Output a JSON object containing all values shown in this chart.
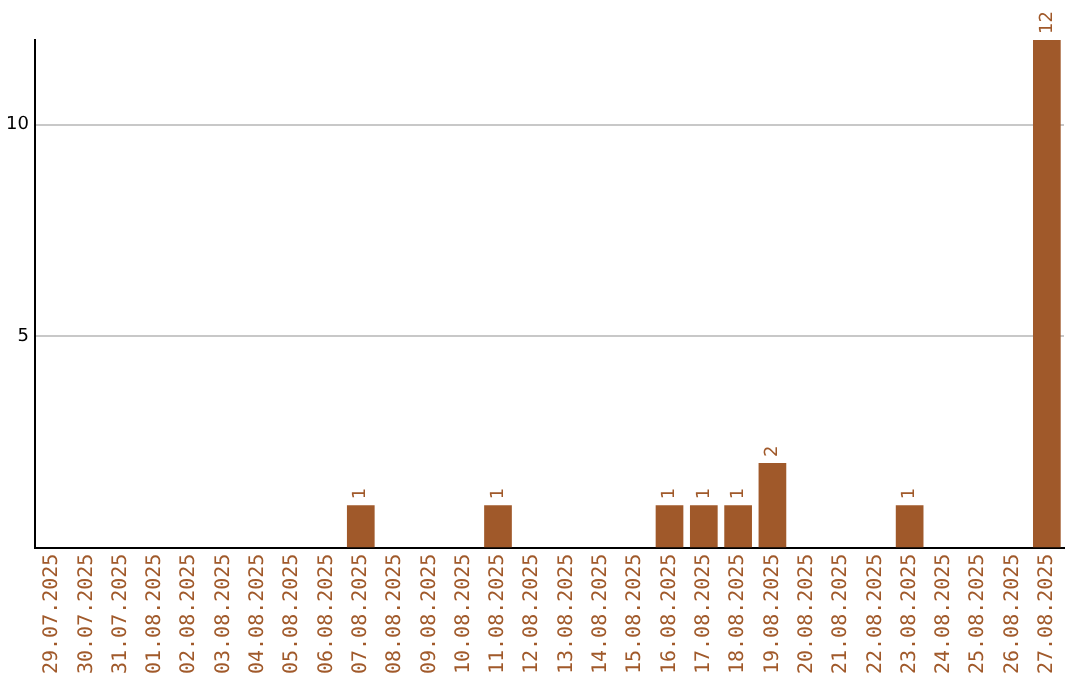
{
  "chart_data": {
    "type": "bar",
    "categories": [
      "29.07.2025",
      "30.07.2025",
      "31.07.2025",
      "01.08.2025",
      "02.08.2025",
      "03.08.2025",
      "04.08.2025",
      "05.08.2025",
      "06.08.2025",
      "07.08.2025",
      "08.08.2025",
      "09.08.2025",
      "10.08.2025",
      "11.08.2025",
      "12.08.2025",
      "13.08.2025",
      "14.08.2025",
      "15.08.2025",
      "16.08.2025",
      "17.08.2025",
      "18.08.2025",
      "19.08.2025",
      "20.08.2025",
      "21.08.2025",
      "22.08.2025",
      "23.08.2025",
      "24.08.2025",
      "25.08.2025",
      "26.08.2025",
      "27.08.2025"
    ],
    "values": [
      0,
      0,
      0,
      0,
      0,
      0,
      0,
      0,
      0,
      1,
      0,
      0,
      0,
      1,
      0,
      0,
      0,
      0,
      1,
      1,
      1,
      2,
      0,
      0,
      0,
      1,
      0,
      0,
      0,
      12
    ],
    "value_labels": [
      null,
      null,
      null,
      null,
      null,
      null,
      null,
      null,
      null,
      "1",
      null,
      null,
      null,
      "1",
      null,
      null,
      null,
      null,
      "1",
      "1",
      "1",
      "2",
      null,
      null,
      null,
      "1",
      null,
      null,
      null,
      "12"
    ],
    "color": "#a0592a",
    "ylim": [
      0,
      12
    ],
    "yticks": [
      5,
      10
    ],
    "grid": "y",
    "legend": false
  }
}
